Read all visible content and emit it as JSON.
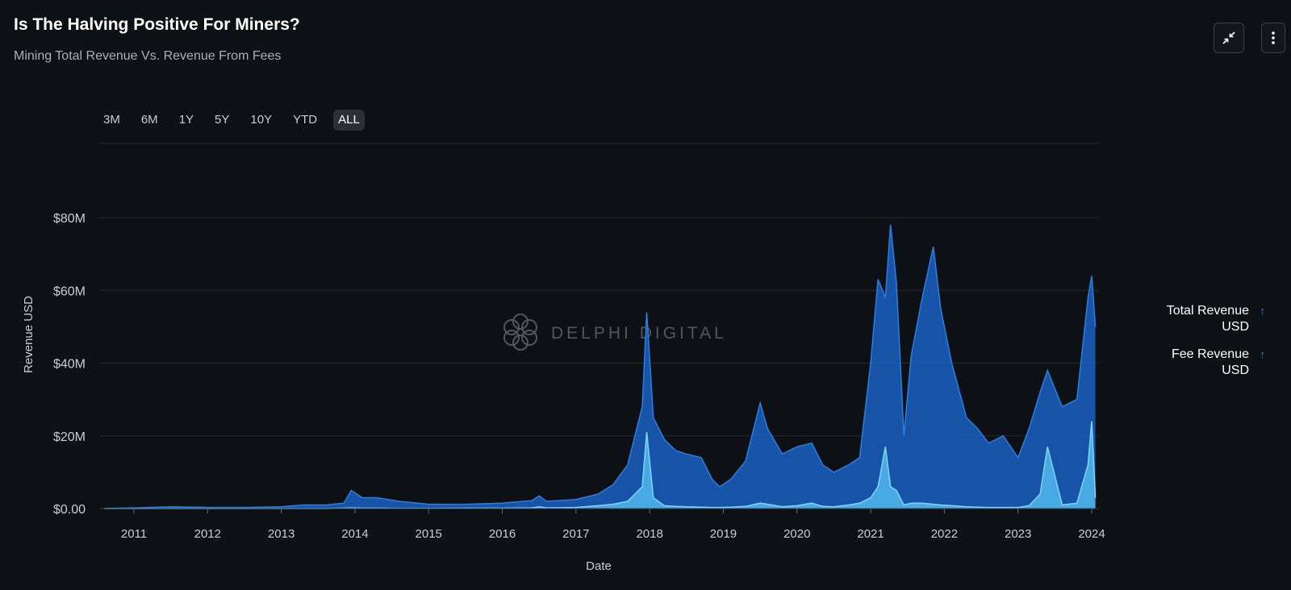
{
  "header": {
    "title": "Is The Halving Positive For Miners?",
    "subtitle": "Mining Total Revenue Vs. Revenue From Fees",
    "collapse_icon": "collapse-arrows-icon",
    "more_icon": "vertical-dots-icon"
  },
  "ranges": {
    "options": [
      "3M",
      "6M",
      "1Y",
      "5Y",
      "10Y",
      "YTD",
      "ALL"
    ],
    "selected": "ALL"
  },
  "watermark": "DELPHI DIGITAL",
  "legend": {
    "items": [
      {
        "label": "Total Revenue USD",
        "color": "#1f6fd8"
      },
      {
        "label": "Fee Revenue USD",
        "color": "#5bc4f5"
      }
    ]
  },
  "chart_data": {
    "type": "area",
    "title": "Is The Halving Positive For Miners?",
    "subtitle": "Mining Total Revenue Vs. Revenue From Fees",
    "xlabel": "Date",
    "ylabel": "Revenue USD",
    "ylim": [
      0,
      80000000
    ],
    "y_ticks": [
      0,
      20000000,
      40000000,
      60000000,
      80000000
    ],
    "y_tick_labels": [
      "$0.00",
      "$20M",
      "$40M",
      "$60M",
      "$80M"
    ],
    "x_ticks": [
      "2011",
      "2012",
      "2013",
      "2014",
      "2015",
      "2016",
      "2017",
      "2018",
      "2019",
      "2020",
      "2021",
      "2022",
      "2023",
      "2024"
    ],
    "grid": true,
    "legend_position": "right",
    "x": [
      2010.6,
      2011.0,
      2011.5,
      2012.0,
      2012.5,
      2013.0,
      2013.3,
      2013.6,
      2013.85,
      2013.95,
      2014.1,
      2014.3,
      2014.6,
      2015.0,
      2015.5,
      2016.0,
      2016.4,
      2016.5,
      2016.6,
      2017.0,
      2017.3,
      2017.5,
      2017.7,
      2017.9,
      2017.96,
      2018.05,
      2018.2,
      2018.35,
      2018.5,
      2018.7,
      2018.85,
      2018.95,
      2019.1,
      2019.3,
      2019.5,
      2019.6,
      2019.8,
      2020.0,
      2020.2,
      2020.35,
      2020.5,
      2020.7,
      2020.85,
      2021.0,
      2021.1,
      2021.2,
      2021.27,
      2021.35,
      2021.45,
      2021.55,
      2021.7,
      2021.85,
      2021.95,
      2022.1,
      2022.3,
      2022.45,
      2022.6,
      2022.8,
      2023.0,
      2023.15,
      2023.3,
      2023.4,
      2023.6,
      2023.8,
      2023.95,
      2024.0,
      2024.05
    ],
    "series": [
      {
        "name": "Total Revenue USD",
        "color": "#1f6fd8",
        "values": [
          0.05,
          0.2,
          0.5,
          0.3,
          0.3,
          0.5,
          1.0,
          1.0,
          1.5,
          5.0,
          3.0,
          3.0,
          2.0,
          1.2,
          1.2,
          1.5,
          2.2,
          3.5,
          2.0,
          2.5,
          4.0,
          6.5,
          12.0,
          28.0,
          54.0,
          25.0,
          19.0,
          16.0,
          15.0,
          14.0,
          8.0,
          6.0,
          8.0,
          13.0,
          29.0,
          22.0,
          15.0,
          17.0,
          18.0,
          12.0,
          10.0,
          12.0,
          14.0,
          40.0,
          63.0,
          58.0,
          78.0,
          62.0,
          20.0,
          42.0,
          58.0,
          72.0,
          55.0,
          40.0,
          25.0,
          22.0,
          18.0,
          20.0,
          14.0,
          22.0,
          32.0,
          38.0,
          28.0,
          30.0,
          58.0,
          64.0,
          50.0
        ]
      },
      {
        "name": "Fee Revenue USD",
        "color": "#5bc4f5",
        "values": [
          0,
          0,
          0,
          0,
          0,
          0,
          0,
          0,
          0.1,
          0.2,
          0.1,
          0.1,
          0.05,
          0.05,
          0.1,
          0.1,
          0.2,
          0.5,
          0.2,
          0.3,
          0.8,
          1.2,
          2.0,
          6.0,
          21.0,
          3.0,
          0.8,
          0.6,
          0.5,
          0.4,
          0.3,
          0.3,
          0.4,
          0.6,
          1.5,
          1.2,
          0.5,
          0.8,
          1.5,
          0.6,
          0.5,
          1.0,
          1.5,
          3.0,
          6.0,
          17.0,
          6.0,
          5.0,
          1.0,
          1.5,
          1.5,
          1.2,
          1.0,
          0.8,
          0.5,
          0.4,
          0.3,
          0.3,
          0.3,
          0.8,
          4.0,
          17.0,
          1.0,
          1.5,
          12.0,
          24.0,
          3.0
        ]
      }
    ]
  }
}
